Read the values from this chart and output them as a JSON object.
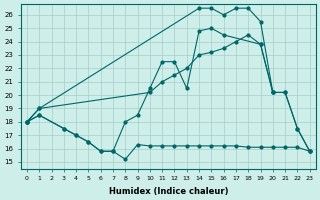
{
  "xlabel": "Humidex (Indice chaleur)",
  "background_color": "#cdeee9",
  "grid_color": "#a8ccc8",
  "line_color": "#006666",
  "xlim": [
    -0.5,
    23.5
  ],
  "ylim": [
    14.5,
    26.8
  ],
  "xticks": [
    0,
    1,
    2,
    3,
    4,
    5,
    6,
    7,
    8,
    9,
    10,
    11,
    12,
    13,
    14,
    15,
    16,
    17,
    18,
    19,
    20,
    21,
    22,
    23
  ],
  "yticks": [
    15,
    16,
    17,
    18,
    19,
    20,
    21,
    22,
    23,
    24,
    25,
    26
  ],
  "s1x": [
    0,
    1,
    3,
    4,
    5,
    6,
    7,
    8,
    9,
    10,
    11,
    12,
    13,
    14,
    15,
    16,
    17,
    18,
    19,
    20,
    21,
    22,
    23
  ],
  "s1y": [
    18,
    18.5,
    17.5,
    17,
    16.5,
    15.8,
    15.8,
    15.2,
    16.3,
    16.2,
    16.2,
    16.2,
    16.2,
    16.2,
    16.2,
    16.2,
    16.2,
    16.1,
    16.1,
    16.1,
    16.1,
    16.1,
    15.8
  ],
  "s2x": [
    0,
    1,
    3,
    4,
    5,
    6,
    7,
    8,
    9,
    10,
    11,
    12,
    13,
    14,
    15,
    16,
    19,
    20
  ],
  "s2y": [
    18,
    18.5,
    17.5,
    17,
    16.5,
    15.8,
    15.8,
    18,
    18.5,
    20.5,
    22.5,
    22.5,
    20.5,
    24.8,
    25.0,
    24.5,
    23.8,
    20.2
  ],
  "s3x": [
    0,
    1,
    10,
    11,
    12,
    13,
    14,
    15,
    16,
    17,
    18,
    19,
    20,
    21,
    22,
    23
  ],
  "s3y": [
    18,
    19,
    20.2,
    21.0,
    21.5,
    22.0,
    23.0,
    23.2,
    23.5,
    24.0,
    24.5,
    23.8,
    20.2,
    20.2,
    17.5,
    15.8
  ],
  "s4x": [
    0,
    1,
    14,
    15,
    16,
    17,
    18,
    19,
    20,
    21,
    22,
    23
  ],
  "s4y": [
    18,
    19,
    26.5,
    26.5,
    26.0,
    26.5,
    26.5,
    25.5,
    20.2,
    20.2,
    17.5,
    15.8
  ]
}
